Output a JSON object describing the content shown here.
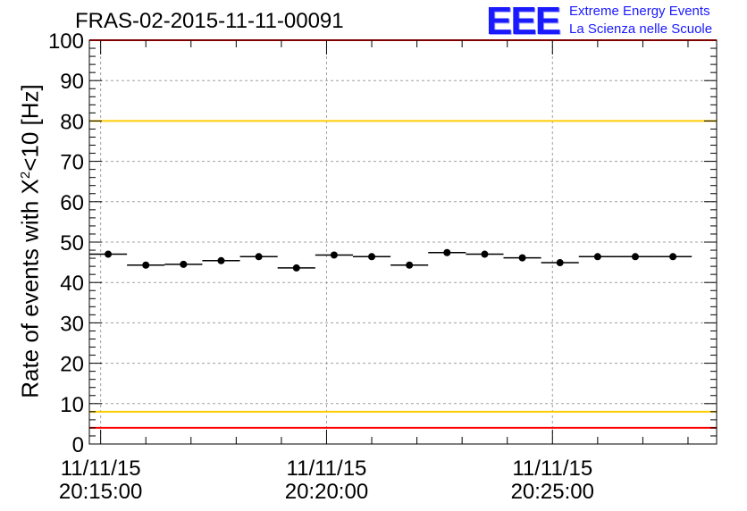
{
  "header": {
    "title": "FRAS-02-2015-11-11-00091",
    "logo": "EEE",
    "org_line1": "Extreme Energy Events",
    "org_line2": "La Scienza nelle Scuole"
  },
  "chart_data": {
    "type": "scatter",
    "title": "FRAS-02-2015-11-11-00091",
    "ylabel_main": "Rate of events with X",
    "ylabel_sup": "2",
    "ylabel_tail": "<10 [Hz]",
    "ylim": [
      0,
      100
    ],
    "yticks": [
      "0",
      "10",
      "20",
      "30",
      "40",
      "50",
      "60",
      "70",
      "80",
      "90",
      "100"
    ],
    "xlim": [
      "11/11/15 20:14:45",
      "11/11/15 20:28:38"
    ],
    "xticks": [
      {
        "date": "11/11/15",
        "time": "20:15:00"
      },
      {
        "date": "11/11/15",
        "time": "20:20:00"
      },
      {
        "date": "11/11/15",
        "time": "20:25:00"
      }
    ],
    "grid": true,
    "bin_width_s": 50,
    "series": [
      {
        "x": [
          "20:14:45",
          "20:15:35",
          "20:16:25",
          "20:17:15",
          "20:18:05",
          "20:18:55",
          "20:19:45",
          "20:20:35",
          "20:21:25",
          "20:22:15",
          "20:23:05",
          "20:23:55",
          "20:24:45",
          "20:25:35",
          "20:26:25",
          "20:27:15"
        ],
        "values": [
          47.0,
          44.3,
          44.5,
          45.4,
          46.4,
          43.6,
          46.8,
          46.4,
          44.3,
          47.4,
          47.0,
          46.1,
          44.9,
          46.4,
          46.4,
          46.4
        ],
        "color": "#000000"
      }
    ],
    "reference_lines": [
      {
        "y": 100,
        "color": "#ff0000"
      },
      {
        "y": 80,
        "color": "#ffcc00"
      },
      {
        "y": 8,
        "color": "#ffcc00"
      },
      {
        "y": 4,
        "color": "#ff0000"
      }
    ]
  }
}
